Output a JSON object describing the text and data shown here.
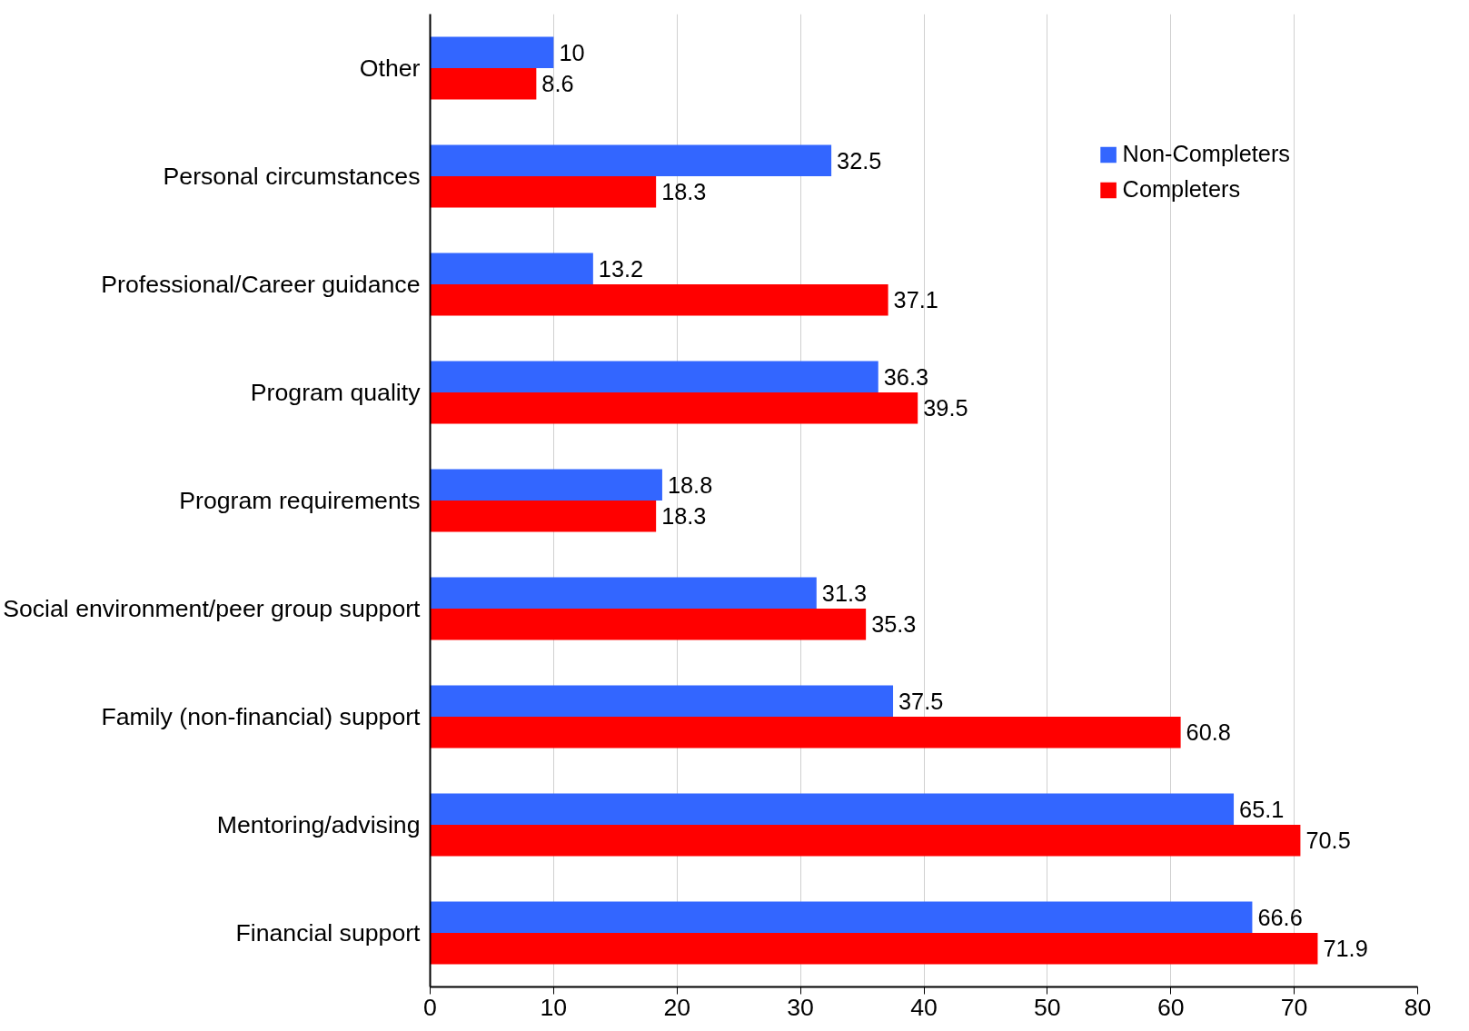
{
  "chart_data": {
    "type": "bar",
    "orientation": "horizontal",
    "categories": [
      "Other",
      "Personal circumstances",
      "Professional/Career guidance",
      "Program quality",
      "Program requirements",
      "Social environment/peer group support",
      "Family (non-financial) support",
      "Mentoring/advising",
      "Financial support"
    ],
    "series": [
      {
        "name": "Non-Completers",
        "color": "#3366ff",
        "values": [
          10,
          32.5,
          13.2,
          36.3,
          18.8,
          31.3,
          37.5,
          65.1,
          66.6
        ]
      },
      {
        "name": "Completers",
        "color": "#ff0000",
        "values": [
          8.6,
          18.3,
          37.1,
          39.5,
          18.3,
          35.3,
          60.8,
          70.5,
          71.9
        ]
      }
    ],
    "xlim": [
      0,
      80
    ],
    "xticks": [
      0,
      10,
      20,
      30,
      40,
      50,
      60,
      70,
      80
    ],
    "grid": "x",
    "legend": "top right",
    "data_labels": true
  }
}
